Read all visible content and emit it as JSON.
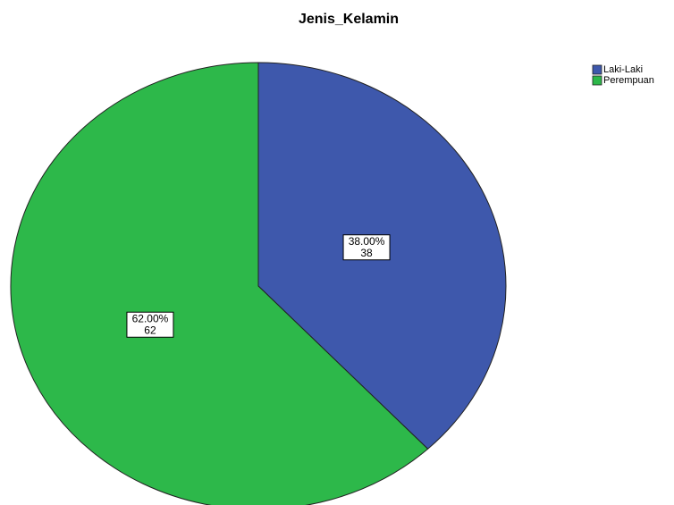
{
  "chart_data": {
    "type": "pie",
    "title": "Jenis_Kelamin",
    "categories": [
      "Laki-Laki",
      "Perempuan"
    ],
    "values": [
      38,
      62
    ],
    "value_labels": [
      "38.00%",
      "62.00%"
    ],
    "colors": [
      "#3e58ac",
      "#2db84a"
    ],
    "legend": "top-right"
  }
}
